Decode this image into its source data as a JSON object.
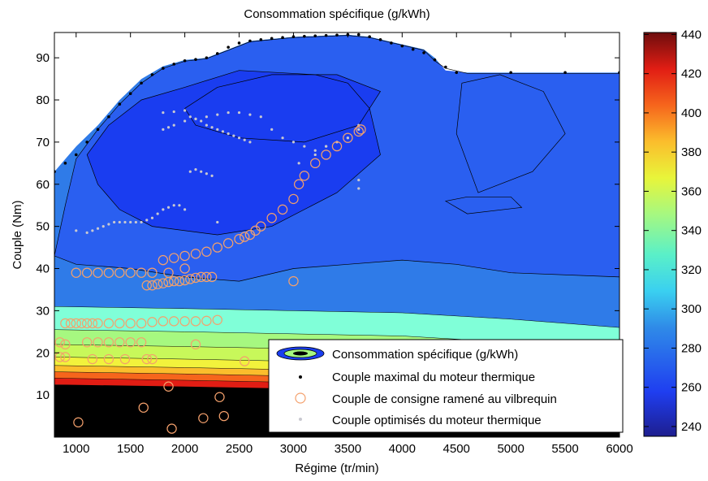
{
  "chart_data": {
    "type": "contour",
    "title": "Consommation spécifique (g/kWh)",
    "xlabel": "Régime (tr/min)",
    "ylabel": "Couple (Nm)",
    "xlim": [
      800,
      6000
    ],
    "ylim": [
      0,
      96
    ],
    "x_ticks": [
      "1000",
      "1500",
      "2000",
      "2500",
      "3000",
      "3500",
      "4000",
      "4500",
      "5000",
      "5500",
      "6000"
    ],
    "y_ticks": [
      "10",
      "20",
      "30",
      "40",
      "50",
      "60",
      "70",
      "80",
      "90"
    ],
    "colorbar": {
      "range": [
        235,
        441
      ],
      "ticks": [
        "240",
        "260",
        "280",
        "300",
        "320",
        "340",
        "360",
        "380",
        "400",
        "420",
        "440"
      ]
    },
    "legend_position": "bottom-right",
    "series": [
      {
        "name": "Consommation spécifique (g/kWh)",
        "kind": "contour-filled",
        "bands": [
          {
            "min": 235,
            "max": 245,
            "color": "#1a3df0"
          },
          {
            "min": 245,
            "max": 255,
            "color": "#2a5ff0"
          },
          {
            "min": 255,
            "max": 265,
            "color": "#2a5ff0"
          },
          {
            "min": 265,
            "max": 280,
            "color": "#2f7be8"
          },
          {
            "min": 280,
            "max": 300,
            "color": "#3fa0ea"
          },
          {
            "min": 300,
            "max": 320,
            "color": "#80ffd8"
          },
          {
            "min": 320,
            "max": 340,
            "color": "#a6f880"
          },
          {
            "min": 340,
            "max": 360,
            "color": "#c8f85a"
          },
          {
            "min": 360,
            "max": 380,
            "color": "#f2f23c"
          },
          {
            "min": 380,
            "max": 400,
            "color": "#fbbd2c"
          },
          {
            "min": 400,
            "max": 420,
            "color": "#f6651c"
          },
          {
            "min": 420,
            "max": 440,
            "color": "#e11d14"
          }
        ],
        "boundary": [
          [
            800,
            63
          ],
          [
            900,
            66
          ],
          [
            1000,
            69
          ],
          [
            1200,
            74
          ],
          [
            1400,
            80
          ],
          [
            1600,
            85
          ],
          [
            1800,
            88
          ],
          [
            2000,
            89.5
          ],
          [
            2200,
            90
          ],
          [
            2600,
            94
          ],
          [
            3000,
            95
          ],
          [
            3500,
            95.5
          ],
          [
            3700,
            95
          ],
          [
            4200,
            92
          ],
          [
            4300,
            90
          ],
          [
            4400,
            87
          ],
          [
            4600,
            86.5
          ],
          [
            6000,
            86.5
          ]
        ]
      },
      {
        "name": "Couple maximal du moteur thermique",
        "kind": "points",
        "color": "#000000",
        "x": [
          800,
          900,
          1000,
          1100,
          1200,
          1300,
          1400,
          1500,
          1600,
          1700,
          1800,
          1900,
          2000,
          2100,
          2200,
          2300,
          2400,
          2500,
          2600,
          2700,
          2800,
          2900,
          3000,
          3100,
          3200,
          3300,
          3400,
          3500,
          3600,
          3700,
          3800,
          3900,
          4000,
          4100,
          4200,
          4300,
          4400,
          4500,
          5000,
          5500,
          6000
        ],
        "y": [
          63,
          65,
          67,
          70,
          73,
          76,
          79,
          81.5,
          84,
          86,
          87.5,
          88.5,
          89.3,
          89.6,
          90,
          91,
          92.5,
          93.5,
          94,
          94.3,
          94.6,
          94.8,
          95,
          95.1,
          95.2,
          95.3,
          95.4,
          95.5,
          95.5,
          95,
          94.3,
          93.5,
          92.8,
          92,
          91.2,
          89.5,
          87.8,
          86.5,
          86.5,
          86.5,
          86.5
        ]
      },
      {
        "name": "Couple de consigne ramené au vilbrequin",
        "kind": "points",
        "color": "#f4a06c",
        "x": [
          1000,
          1100,
          1200,
          1300,
          1400,
          1500,
          1600,
          1700,
          1850,
          2000,
          1650,
          1700,
          1750,
          1800,
          1850,
          1900,
          1950,
          2000,
          2050,
          2100,
          2150,
          2200,
          2250,
          1800,
          1900,
          2000,
          2100,
          2200,
          2300,
          2400,
          2500,
          2550,
          2600,
          2650,
          2700,
          2800,
          2900,
          3000,
          3050,
          3100,
          3200,
          3300,
          3400,
          3500,
          3600,
          3620,
          3000,
          900,
          950,
          1000,
          1050,
          1100,
          1150,
          1200,
          1300,
          1400,
          1500,
          1600,
          1700,
          1800,
          1900,
          2000,
          2100,
          2200,
          2300,
          850,
          900,
          1100,
          1200,
          1300,
          1400,
          1500,
          1600,
          850,
          900,
          1150,
          1300,
          1450,
          1650,
          1700,
          2100,
          2550,
          1850,
          1020,
          1620,
          2320,
          1880,
          2170,
          2360
        ],
        "y": [
          39,
          39,
          39,
          39,
          39,
          39,
          39,
          39,
          39,
          40,
          36,
          36,
          36.3,
          36.5,
          36.8,
          37,
          37,
          37.2,
          37.5,
          37.8,
          38,
          38,
          38,
          42,
          42.5,
          43,
          43.5,
          44,
          45,
          46,
          47,
          47.5,
          48,
          49,
          50,
          52,
          54,
          56.5,
          60,
          62,
          65,
          67,
          69,
          71,
          72.5,
          73,
          37,
          27,
          27,
          27,
          27,
          27,
          27,
          27,
          27,
          27,
          27,
          27,
          27.3,
          27.5,
          27.5,
          27.5,
          27.5,
          27.6,
          27.8,
          22.5,
          22,
          22.5,
          22.5,
          22.5,
          22.5,
          22.5,
          22.5,
          19,
          19,
          18.5,
          18.5,
          18.5,
          18.5,
          18.5,
          22,
          18,
          12,
          3.5,
          7,
          9.5,
          2,
          4.5,
          5
        ]
      },
      {
        "name": "Couple optimisés du moteur thermique",
        "kind": "points",
        "color": "#c8c8d0",
        "x": [
          1000,
          1100,
          1150,
          1200,
          1250,
          1300,
          1350,
          1400,
          1450,
          1500,
          1550,
          1600,
          1650,
          1700,
          1750,
          1800,
          1850,
          1900,
          1950,
          2000,
          1800,
          1900,
          2000,
          2050,
          2100,
          2150,
          2200,
          2250,
          2300,
          2350,
          2400,
          2450,
          2500,
          2550,
          2600,
          1800,
          1850,
          1900,
          2000,
          2100,
          2200,
          2300,
          2400,
          2500,
          2600,
          2700,
          2800,
          2900,
          3000,
          3100,
          3200,
          3300,
          3400,
          3500,
          3600,
          3050,
          3200,
          3300,
          3500,
          3600,
          3600,
          3600,
          2050,
          2100,
          2150,
          2200,
          2250,
          2300
        ],
        "y": [
          49,
          48.5,
          49,
          49.5,
          50,
          50.5,
          51,
          51,
          51,
          51,
          51,
          51,
          51.5,
          52,
          53,
          54,
          54.5,
          55,
          55,
          54,
          77,
          77.2,
          77.5,
          76,
          75.5,
          75,
          74,
          73.5,
          73,
          72.5,
          72,
          71.5,
          71,
          70.5,
          70,
          73,
          73.5,
          74,
          75,
          75.5,
          76,
          76.5,
          77,
          77,
          76.5,
          76,
          73,
          71,
          70,
          69,
          68,
          69,
          70,
          71,
          74,
          65,
          67,
          69,
          71,
          73,
          61,
          59,
          63,
          63.5,
          63,
          62.5,
          62,
          51
        ]
      }
    ]
  }
}
